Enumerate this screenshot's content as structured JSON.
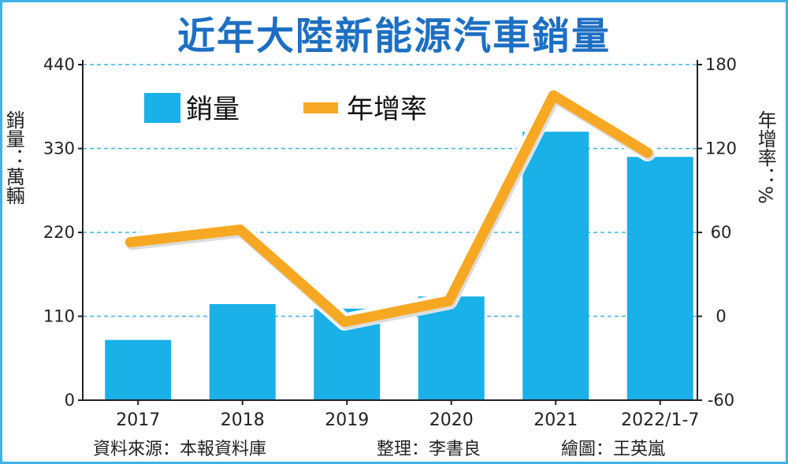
{
  "title": "近年大陸新能源汽車銷量",
  "left_axis_label": "銷量：萬輛",
  "right_axis_label": "年增率：%",
  "footer": {
    "source": "資料來源：本報資料庫",
    "editor": "整理：李書良",
    "illustrator": "繪圖：王英嵐"
  },
  "colors": {
    "bar": "#1ab0e8",
    "line": "#f7a823",
    "title": "#1d6fc2",
    "grid": "#3fb3e6"
  },
  "chart_data": {
    "type": "bar",
    "categories": [
      "2017",
      "2018",
      "2019",
      "2020",
      "2021",
      "2022/1-7"
    ],
    "series": [
      {
        "name": "銷量",
        "type": "bar",
        "axis": "left",
        "values": [
          79,
          126,
          120,
          136,
          352,
          319
        ]
      },
      {
        "name": "年增率",
        "type": "line",
        "axis": "right",
        "values": [
          53,
          62,
          -4,
          11,
          158,
          117
        ]
      }
    ],
    "left_axis": {
      "ticks": [
        0,
        110,
        220,
        330,
        440
      ],
      "range": [
        0,
        440
      ]
    },
    "right_axis": {
      "ticks": [
        -60,
        0,
        60,
        120,
        180
      ],
      "range": [
        -60,
        180
      ]
    },
    "grid": true,
    "legend_position": "top-left"
  }
}
